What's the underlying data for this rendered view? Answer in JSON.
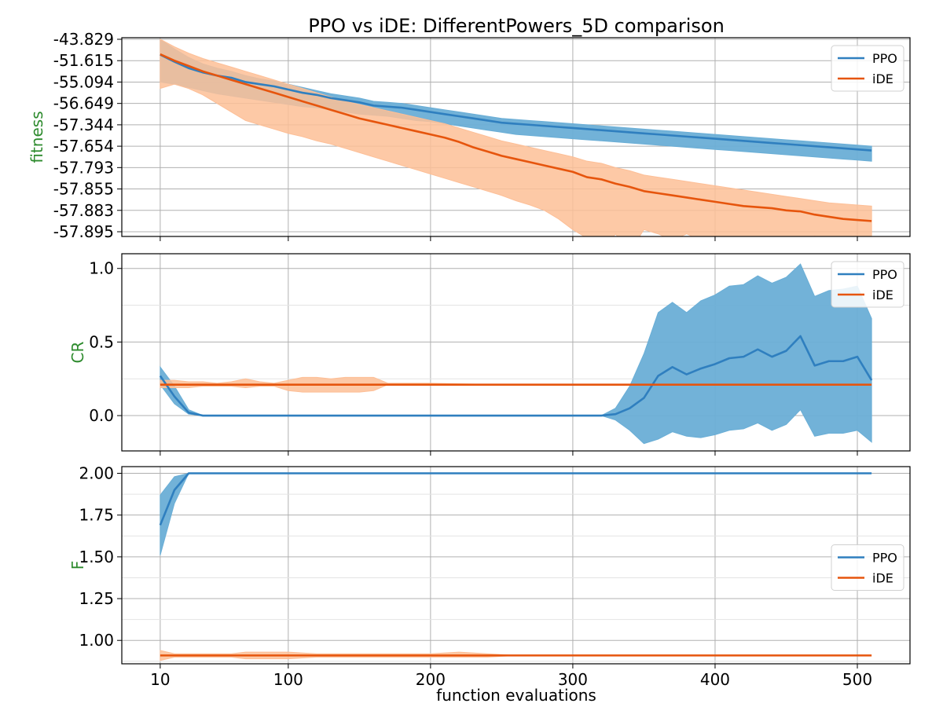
{
  "chart_data": {
    "type": "line",
    "title": "PPO vs iDE: DifferentPowers_5D comparison",
    "xlabel": "function evaluations",
    "x_ticks": [
      10,
      100,
      200,
      300,
      400,
      500
    ],
    "xlim": [
      -17,
      537
    ],
    "legend_position": "right",
    "colors": {
      "PPO": "#2f7fbf",
      "PPO_band": "#6aaed6",
      "iDE": "#e6550d",
      "iDE_band": "#fdbf97"
    },
    "panels": [
      {
        "id": "fitness",
        "ylabel": "fitness",
        "ylabel_color": "#2e8b2e",
        "scale": "categorical-ticks",
        "y_ticks": [
          "-43.829",
          "-51.615",
          "-55.094",
          "-56.649",
          "-57.344",
          "-57.654",
          "-57.793",
          "-57.855",
          "-57.883",
          "-57.895"
        ],
        "legend_placement": "top-right",
        "series": [
          {
            "name": "PPO",
            "x": [
              10,
              20,
              30,
              40,
              50,
              60,
              70,
              80,
              90,
              100,
              110,
              120,
              130,
              140,
              150,
              160,
              170,
              180,
              190,
              200,
              210,
              220,
              230,
              240,
              250,
              260,
              270,
              280,
              290,
              300,
              310,
              320,
              330,
              340,
              350,
              360,
              370,
              380,
              390,
              400,
              410,
              420,
              430,
              440,
              450,
              460,
              470,
              480,
              490,
              500,
              510
            ],
            "y": [
              0.72,
              1.05,
              1.35,
              1.55,
              1.7,
              1.8,
              2.0,
              2.1,
              2.2,
              2.35,
              2.5,
              2.6,
              2.75,
              2.85,
              2.95,
              3.1,
              3.15,
              3.2,
              3.3,
              3.4,
              3.5,
              3.6,
              3.7,
              3.8,
              3.9,
              3.95,
              4.0,
              4.05,
              4.1,
              4.15,
              4.2,
              4.25,
              4.3,
              4.35,
              4.4,
              4.45,
              4.5,
              4.55,
              4.6,
              4.65,
              4.7,
              4.75,
              4.8,
              4.85,
              4.9,
              4.95,
              5.0,
              5.05,
              5.1,
              5.15,
              5.2
            ],
            "band_upper": [
              0.0,
              0.45,
              0.85,
              1.15,
              1.35,
              1.5,
              1.7,
              1.85,
              1.95,
              2.1,
              2.25,
              2.4,
              2.55,
              2.65,
              2.75,
              2.9,
              2.95,
              3.0,
              3.1,
              3.2,
              3.3,
              3.4,
              3.5,
              3.6,
              3.7,
              3.75,
              3.8,
              3.85,
              3.9,
              3.95,
              4.0,
              4.05,
              4.1,
              4.15,
              4.2,
              4.25,
              4.3,
              4.35,
              4.4,
              4.45,
              4.5,
              4.55,
              4.6,
              4.65,
              4.7,
              4.75,
              4.8,
              4.85,
              4.9,
              4.95,
              5.0
            ],
            "band_lower": [
              2.0,
              2.1,
              2.25,
              2.4,
              2.55,
              2.65,
              2.75,
              2.85,
              2.95,
              3.05,
              3.15,
              3.2,
              3.3,
              3.4,
              3.5,
              3.55,
              3.6,
              3.7,
              3.8,
              3.85,
              3.95,
              4.05,
              4.15,
              4.25,
              4.35,
              4.45,
              4.5,
              4.55,
              4.6,
              4.65,
              4.7,
              4.75,
              4.8,
              4.85,
              4.9,
              4.95,
              5.0,
              5.05,
              5.1,
              5.15,
              5.2,
              5.25,
              5.3,
              5.35,
              5.4,
              5.45,
              5.5,
              5.55,
              5.6,
              5.65,
              5.7
            ]
          },
          {
            "name": "iDE",
            "x": [
              10,
              20,
              30,
              40,
              50,
              60,
              70,
              80,
              90,
              100,
              110,
              120,
              130,
              140,
              150,
              160,
              170,
              180,
              190,
              200,
              210,
              220,
              230,
              240,
              250,
              260,
              270,
              280,
              290,
              300,
              310,
              320,
              330,
              340,
              350,
              360,
              370,
              380,
              390,
              400,
              410,
              420,
              430,
              440,
              450,
              460,
              470,
              480,
              490,
              500,
              510
            ],
            "y": [
              0.7,
              1.0,
              1.25,
              1.5,
              1.7,
              1.9,
              2.1,
              2.3,
              2.5,
              2.7,
              2.9,
              3.1,
              3.3,
              3.5,
              3.7,
              3.85,
              4.0,
              4.15,
              4.3,
              4.45,
              4.6,
              4.8,
              5.05,
              5.25,
              5.45,
              5.6,
              5.75,
              5.9,
              6.05,
              6.2,
              6.45,
              6.55,
              6.75,
              6.9,
              7.1,
              7.2,
              7.3,
              7.4,
              7.5,
              7.6,
              7.7,
              7.8,
              7.85,
              7.9,
              8.0,
              8.05,
              8.2,
              8.3,
              8.4,
              8.45,
              8.5
            ],
            "band_upper": [
              0.0,
              0.35,
              0.65,
              0.9,
              1.1,
              1.3,
              1.5,
              1.7,
              1.9,
              2.1,
              2.3,
              2.5,
              2.7,
              2.9,
              3.05,
              3.2,
              3.35,
              3.5,
              3.65,
              3.8,
              3.95,
              4.15,
              4.35,
              4.55,
              4.75,
              4.9,
              5.05,
              5.2,
              5.35,
              5.5,
              5.7,
              5.8,
              6.0,
              6.15,
              6.35,
              6.45,
              6.55,
              6.65,
              6.75,
              6.85,
              6.95,
              7.05,
              7.15,
              7.25,
              7.35,
              7.45,
              7.55,
              7.65,
              7.7,
              7.75,
              7.8
            ],
            "band_lower": [
              2.3,
              2.1,
              2.3,
              2.6,
              3.0,
              3.4,
              3.8,
              4.0,
              4.2,
              4.4,
              4.55,
              4.75,
              4.9,
              5.1,
              5.3,
              5.5,
              5.7,
              5.9,
              6.1,
              6.3,
              6.5,
              6.7,
              6.9,
              7.1,
              7.3,
              7.55,
              7.75,
              8.0,
              8.4,
              8.9,
              9.3,
              10.0,
              9.1,
              9.95,
              8.9,
              9.1,
              9.4,
              9.1,
              9.4,
              9.6,
              10.1,
              9.4,
              9.5,
              9.6,
              9.7,
              9.75,
              9.2,
              9.4,
              9.6,
              9.75,
              9.75
            ]
          }
        ]
      },
      {
        "id": "cr",
        "ylabel": "CR",
        "ylabel_color": "#2e8b2e",
        "ylim": [
          -0.24,
          1.1
        ],
        "y_ticks": [
          0.0,
          0.5,
          1.0
        ],
        "y_tick_labels": [
          "0.0",
          "0.5",
          "1.0"
        ],
        "legend_placement": "top-right",
        "series": [
          {
            "name": "PPO",
            "x": [
              10,
              20,
              30,
              40,
              50,
              60,
              80,
              100,
              150,
              200,
              250,
              300,
              320,
              330,
              340,
              350,
              360,
              370,
              380,
              390,
              400,
              410,
              420,
              430,
              440,
              450,
              460,
              470,
              480,
              490,
              500,
              510
            ],
            "y": [
              0.27,
              0.13,
              0.02,
              0.0,
              0.0,
              0.0,
              0.0,
              0.0,
              0.0,
              0.0,
              0.0,
              0.0,
              0.0,
              0.01,
              0.05,
              0.12,
              0.27,
              0.33,
              0.28,
              0.32,
              0.35,
              0.39,
              0.4,
              0.45,
              0.4,
              0.44,
              0.54,
              0.34,
              0.37,
              0.37,
              0.4,
              0.24
            ],
            "band_upper": [
              0.33,
              0.2,
              0.04,
              0.0,
              0.0,
              0.0,
              0.0,
              0.0,
              0.0,
              0.0,
              0.0,
              0.0,
              0.0,
              0.05,
              0.2,
              0.42,
              0.7,
              0.77,
              0.7,
              0.78,
              0.82,
              0.88,
              0.89,
              0.95,
              0.9,
              0.94,
              1.03,
              0.81,
              0.85,
              0.86,
              0.88,
              0.66
            ],
            "band_lower": [
              0.21,
              0.08,
              0.01,
              0.0,
              0.0,
              0.0,
              0.0,
              0.0,
              0.0,
              0.0,
              0.0,
              0.0,
              0.0,
              -0.03,
              -0.1,
              -0.19,
              -0.16,
              -0.11,
              -0.14,
              -0.15,
              -0.13,
              -0.1,
              -0.09,
              -0.05,
              -0.1,
              -0.06,
              0.04,
              -0.14,
              -0.12,
              -0.12,
              -0.1,
              -0.18
            ]
          },
          {
            "name": "iDE",
            "x": [
              10,
              20,
              30,
              40,
              50,
              60,
              70,
              80,
              90,
              100,
              110,
              120,
              130,
              140,
              150,
              160,
              170,
              180,
              190,
              200,
              250,
              300,
              350,
              400,
              450,
              500,
              510
            ],
            "y": [
              0.21,
              0.21,
              0.21,
              0.21,
              0.21,
              0.21,
              0.21,
              0.21,
              0.21,
              0.21,
              0.21,
              0.21,
              0.21,
              0.21,
              0.21,
              0.21,
              0.21,
              0.21,
              0.21,
              0.21,
              0.21,
              0.21,
              0.21,
              0.21,
              0.21,
              0.21,
              0.21
            ],
            "band_upper": [
              0.24,
              0.24,
              0.23,
              0.23,
              0.22,
              0.23,
              0.25,
              0.23,
              0.22,
              0.24,
              0.26,
              0.26,
              0.25,
              0.26,
              0.26,
              0.26,
              0.22,
              0.22,
              0.22,
              0.22,
              0.21,
              0.21,
              0.21,
              0.21,
              0.21,
              0.21,
              0.21
            ],
            "band_lower": [
              0.19,
              0.19,
              0.19,
              0.2,
              0.2,
              0.2,
              0.19,
              0.2,
              0.2,
              0.17,
              0.16,
              0.16,
              0.16,
              0.16,
              0.16,
              0.17,
              0.21,
              0.21,
              0.21,
              0.21,
              0.21,
              0.21,
              0.21,
              0.21,
              0.21,
              0.21,
              0.21
            ]
          }
        ]
      },
      {
        "id": "f",
        "ylabel": "F",
        "ylabel_color": "#2e8b2e",
        "ylim": [
          0.86,
          2.04
        ],
        "y_ticks": [
          1.0,
          1.25,
          1.5,
          1.75,
          2.0
        ],
        "y_tick_labels": [
          "1.00",
          "1.25",
          "1.50",
          "1.75",
          "2.00"
        ],
        "legend_placement": "center-right",
        "series": [
          {
            "name": "PPO",
            "x": [
              10,
              20,
              30,
              40,
              50,
              100,
              200,
              300,
              400,
              510
            ],
            "y": [
              1.69,
              1.9,
              2.0,
              2.0,
              2.0,
              2.0,
              2.0,
              2.0,
              2.0,
              2.0
            ],
            "band_upper": [
              1.87,
              1.98,
              2.0,
              2.0,
              2.0,
              2.0,
              2.0,
              2.0,
              2.0,
              2.0
            ],
            "band_lower": [
              1.51,
              1.82,
              2.0,
              2.0,
              2.0,
              2.0,
              2.0,
              2.0,
              2.0,
              2.0
            ]
          },
          {
            "name": "iDE",
            "x": [
              10,
              20,
              30,
              40,
              50,
              60,
              70,
              80,
              90,
              100,
              120,
              150,
              180,
              200,
              220,
              240,
              260,
              300,
              400,
              510
            ],
            "y": [
              0.91,
              0.91,
              0.91,
              0.91,
              0.91,
              0.91,
              0.91,
              0.91,
              0.91,
              0.91,
              0.91,
              0.91,
              0.91,
              0.91,
              0.91,
              0.91,
              0.91,
              0.91,
              0.91,
              0.91
            ],
            "band_upper": [
              0.94,
              0.92,
              0.92,
              0.92,
              0.92,
              0.92,
              0.93,
              0.93,
              0.93,
              0.93,
              0.92,
              0.92,
              0.92,
              0.92,
              0.93,
              0.92,
              0.91,
              0.91,
              0.91,
              0.91
            ],
            "band_lower": [
              0.88,
              0.9,
              0.9,
              0.9,
              0.9,
              0.9,
              0.89,
              0.89,
              0.89,
              0.89,
              0.9,
              0.9,
              0.9,
              0.9,
              0.9,
              0.9,
              0.91,
              0.91,
              0.91,
              0.91
            ]
          }
        ]
      }
    ]
  }
}
